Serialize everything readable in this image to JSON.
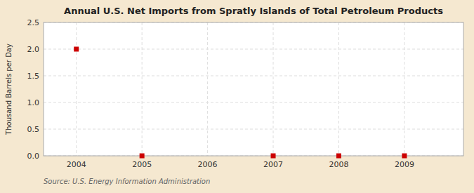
{
  "chart_data": {
    "type": "scatter",
    "title": "Annual U.S. Net Imports from Spratly Islands of Total Petroleum Products",
    "y_label": "Thousand Barrels per Day",
    "annotations": [
      "Source: U.S. Energy Information Administration"
    ],
    "x": [
      2004,
      2005,
      2006,
      2007,
      2008,
      2009
    ],
    "values": [
      2.0,
      0.0,
      null,
      0.0,
      0.0,
      0.0
    ],
    "xlim": [
      2003.5,
      2009.9
    ],
    "ylim": [
      0.0,
      2.5
    ],
    "xticks": [
      2004,
      2005,
      2006,
      2007,
      2008,
      2009
    ],
    "yticks": [
      {
        "value": 0.0,
        "label": "0.0"
      },
      0.5,
      {
        "value": 1.0,
        "label": "1.0"
      },
      1.5,
      {
        "value": 2.0,
        "label": "2.0"
      },
      2.5
    ],
    "color": "#cc0000",
    "marker": "square",
    "grid": true
  }
}
